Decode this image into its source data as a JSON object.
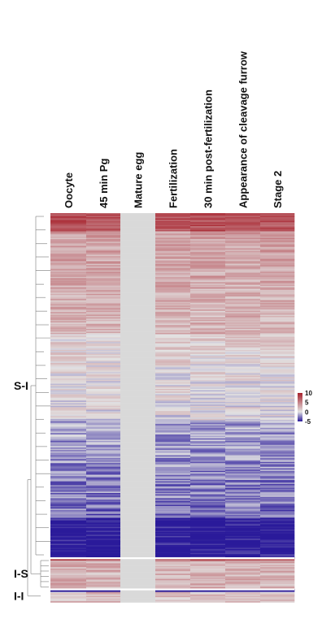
{
  "chart_data": {
    "type": "heatmap",
    "columns": [
      "Oocyte",
      "45 min Pg",
      "Mature egg",
      "Fertilization",
      "30 min post-fertilization",
      "Appearance of cleavage furrow",
      "Stage 2"
    ],
    "missing_columns": [
      "Mature egg"
    ],
    "clusters": [
      {
        "label": "S-I",
        "gene_fraction": 0.885
      },
      {
        "label": "I-S",
        "gene_fraction": 0.08
      },
      {
        "label": "I-I",
        "gene_fraction": 0.035
      }
    ],
    "color_scale": {
      "min": -5,
      "max": 10,
      "center": 0,
      "ticks": [
        "10",
        "5",
        "0",
        "-5"
      ],
      "colors": {
        "high": "#a7212c",
        "mid": "#e3e3e3",
        "low": "#2a1a9a"
      },
      "missing_color": "#d9d9d9"
    },
    "cluster_profiles": {
      "S-I": {
        "top": 7.5,
        "upper": 3.5,
        "middle": 1.0,
        "lower": -1.5,
        "bottom": -5.5
      },
      "I-S": {
        "start": 7.0,
        "body": 2.5
      },
      "I-I": {
        "start": -6.0,
        "body": 2.0
      }
    },
    "dendrogram": true
  }
}
